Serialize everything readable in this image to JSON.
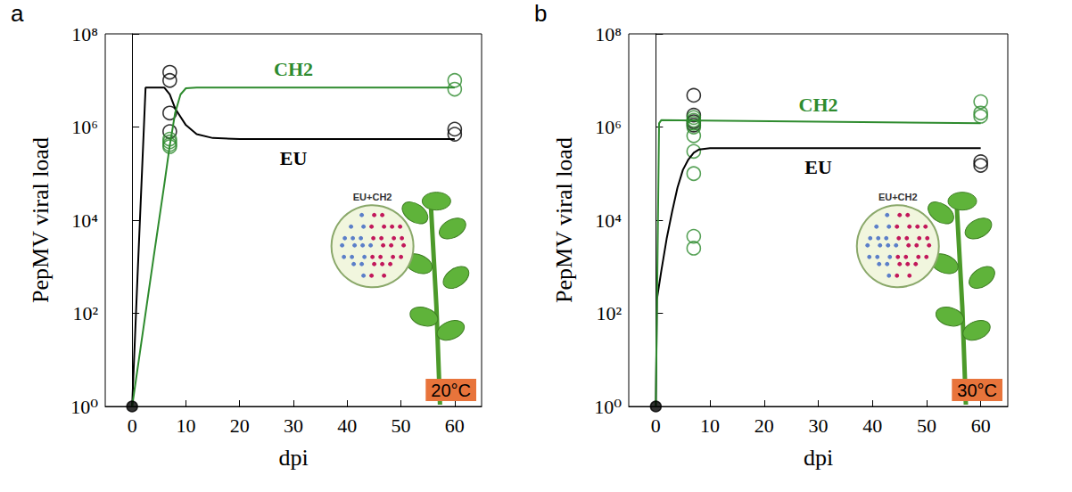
{
  "chart_data": [
    {
      "type": "line",
      "panel_label": "a",
      "xlabel": "dpi",
      "ylabel": "PepMV viral load",
      "log": "y",
      "grid": false,
      "xlim": [
        -5,
        65
      ],
      "xticks": [
        0,
        10,
        20,
        30,
        40,
        50,
        60
      ],
      "ylim": [
        1,
        100000000
      ],
      "yticks": [
        {
          "value": 1,
          "label": "10⁰"
        },
        {
          "value": 100,
          "label": "10²"
        },
        {
          "value": 10000,
          "label": "10⁴"
        },
        {
          "value": 1000000,
          "label": "10⁶"
        },
        {
          "value": 100000000,
          "label": "10⁸"
        }
      ],
      "annotations": {
        "inset": "EU+CH2",
        "temperature": "20°C"
      },
      "start": {
        "x": 0,
        "value": 1,
        "color": "#000000",
        "marker": "filled circle"
      },
      "series": [
        {
          "name": "EU",
          "color": "#000000",
          "marker": "open circle",
          "fit": {
            "x": [
              0,
              1,
              2,
              2.5,
              6,
              7,
              8,
              10,
              12,
              15,
              20,
              60
            ],
            "values": [
              1,
              600,
              300000,
              7000000,
              7000000,
              5000000,
              2500000,
              1100000,
              700000,
              580000,
              550000,
              550000
            ]
          },
          "points": {
            "x": [
              7,
              7,
              7,
              7,
              60,
              60
            ],
            "values": [
              15000000,
              10000000,
              2000000,
              800000,
              900000,
              700000
            ]
          }
        },
        {
          "name": "CH2",
          "color": "#2e8b2e",
          "marker": "open circle",
          "fit": {
            "x": [
              0,
              2,
              4,
              6,
              7,
              8,
              9,
              10,
              12,
              60
            ],
            "values": [
              1,
              40,
              1600,
              60000,
              400000,
              2000000,
              5000000,
              6800000,
              7000000,
              7000000
            ]
          },
          "points": {
            "x": [
              7,
              7,
              7,
              7,
              60,
              60
            ],
            "values": [
              550000,
              480000,
              420000,
              380000,
              10000000,
              6500000
            ]
          }
        }
      ]
    },
    {
      "type": "line",
      "panel_label": "b",
      "xlabel": "dpi",
      "ylabel": "PepMV viral load",
      "log": "y",
      "grid": false,
      "xlim": [
        -5,
        65
      ],
      "xticks": [
        0,
        10,
        20,
        30,
        40,
        50,
        60
      ],
      "ylim": [
        1,
        100000000
      ],
      "yticks": [
        {
          "value": 1,
          "label": "10⁰"
        },
        {
          "value": 100,
          "label": "10²"
        },
        {
          "value": 10000,
          "label": "10⁴"
        },
        {
          "value": 1000000,
          "label": "10⁶"
        },
        {
          "value": 100000000,
          "label": "10⁸"
        }
      ],
      "annotations": {
        "inset": "EU+CH2",
        "temperature": "30°C"
      },
      "start": {
        "x": 0,
        "value": 1,
        "color": "#000000",
        "marker": "filled circle"
      },
      "series": [
        {
          "name": "EU",
          "color": "#000000",
          "marker": "open circle",
          "fit": {
            "x": [
              0,
              0.2,
              1,
              2,
              3,
              4,
              5,
              6,
              7,
              8,
              10,
              60
            ],
            "values": [
              1,
              200,
              800,
              4000,
              15000,
              50000,
              120000,
              200000,
              280000,
              330000,
              350000,
              350000
            ]
          },
          "points": {
            "x": [
              7,
              7,
              7,
              7,
              60,
              60
            ],
            "values": [
              4800000,
              1800000,
              1300000,
              1100000,
              180000,
              150000
            ]
          }
        },
        {
          "name": "CH2",
          "color": "#2e8b2e",
          "marker": "open circle",
          "fit": {
            "x": [
              0,
              0.6,
              1,
              60
            ],
            "values": [
              1,
              1200000,
              1400000,
              1200000
            ]
          },
          "points": {
            "x": [
              7,
              7,
              7,
              7,
              7,
              7,
              7,
              7,
              7,
              60,
              60,
              60
            ],
            "values": [
              1600000,
              1400000,
              1200000,
              1000000,
              650000,
              300000,
              100000,
              4500,
              2500,
              3500000,
              2000000,
              1700000
            ]
          }
        }
      ]
    }
  ]
}
